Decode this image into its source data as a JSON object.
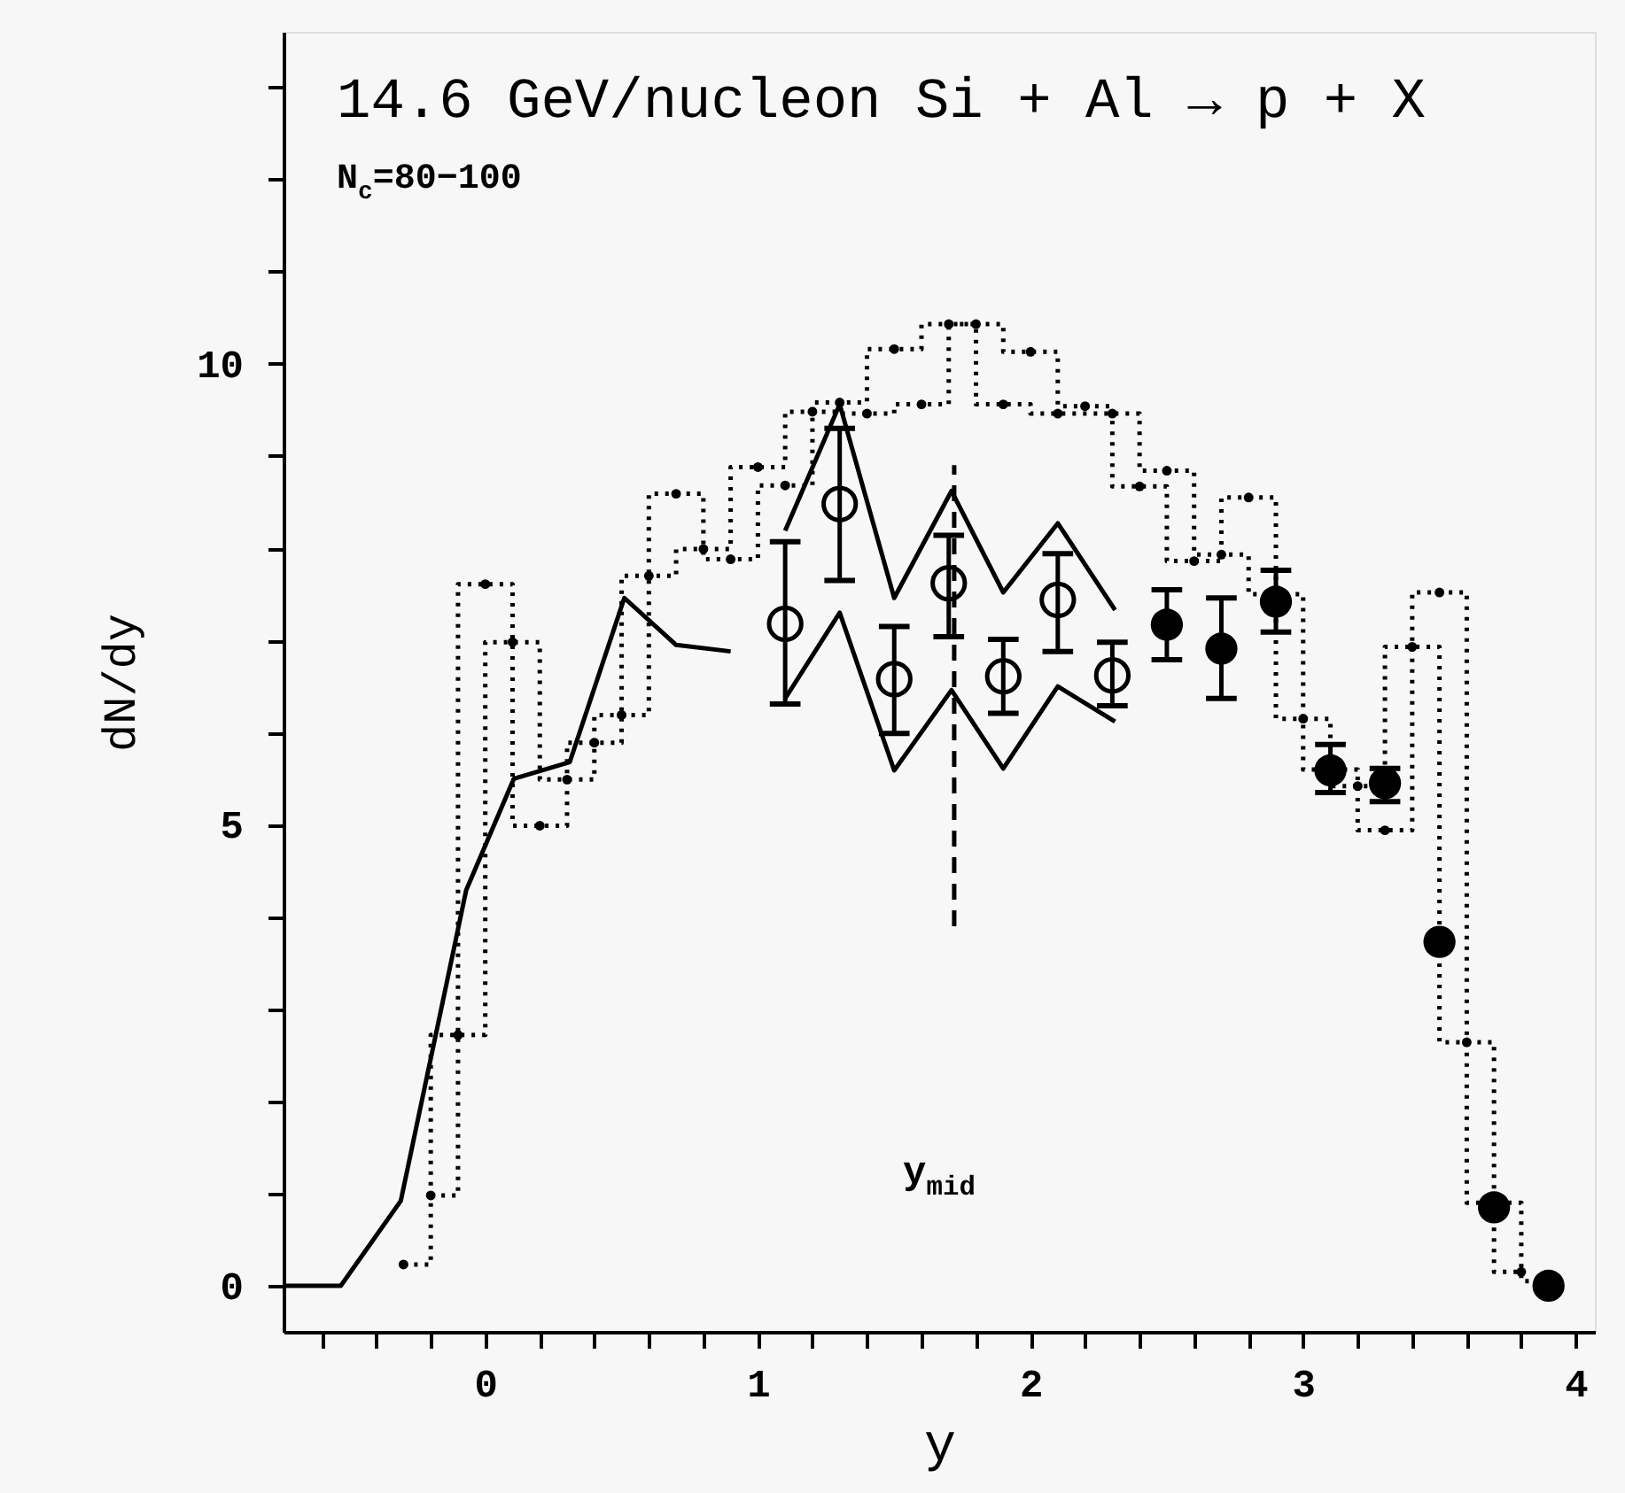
{
  "chart_data": {
    "type": "scatter",
    "title": "14.6 GeV/nucleon Si + Al → p + X",
    "xlabel": "y",
    "ylabel": "dN/dy",
    "xlim": [
      -0.74,
      4.07
    ],
    "ylim": [
      -0.5,
      13.6
    ],
    "xticks": [
      0,
      1,
      2,
      3,
      4,
      {
        "value": -0.6,
        "label": null
      },
      {
        "value": -0.4,
        "label": null
      },
      {
        "value": -0.2,
        "label": null
      },
      {
        "value": 0.2,
        "label": null
      },
      {
        "value": 0.4,
        "label": null
      },
      {
        "value": 0.6,
        "label": null
      },
      {
        "value": 0.8,
        "label": null
      },
      {
        "value": 1.2,
        "label": null
      },
      {
        "value": 1.4,
        "label": null
      },
      {
        "value": 1.6,
        "label": null
      },
      {
        "value": 1.8,
        "label": null
      },
      {
        "value": 2.2,
        "label": null
      },
      {
        "value": 2.4,
        "label": null
      },
      {
        "value": 2.6,
        "label": null
      },
      {
        "value": 2.8,
        "label": null
      },
      {
        "value": 3.2,
        "label": null
      },
      {
        "value": 3.4,
        "label": null
      },
      {
        "value": 3.6,
        "label": null
      },
      {
        "value": 3.8,
        "label": null
      }
    ],
    "yticks": [
      0,
      5,
      10,
      {
        "value": 1,
        "label": null
      },
      {
        "value": 2,
        "label": null
      },
      {
        "value": 3,
        "label": null
      },
      {
        "value": 4,
        "label": null
      },
      {
        "value": 6,
        "label": null
      },
      {
        "value": 7,
        "label": null
      },
      {
        "value": 8,
        "label": null
      },
      {
        "value": 9,
        "label": null
      },
      {
        "value": 11,
        "label": null
      },
      {
        "value": 12,
        "label": null
      },
      {
        "value": 13,
        "label": null
      }
    ],
    "grid": false,
    "annotations": [
      "N$_{c}$=80−100",
      "y$_{mid}$"
    ],
    "series": [
      {
        "type": "line",
        "color": "#000000",
        "line_style": "solid",
        "x": [
          -0.74,
          -0.53,
          -0.31,
          -0.07,
          0.105,
          0.31,
          0.51,
          0.7,
          0.9
        ],
        "values": [
          0,
          0,
          0.92,
          4.29,
          5.5,
          5.68,
          7.46,
          6.95,
          6.88
        ]
      },
      {
        "type": "line",
        "color": "#000000",
        "line_style": "solid",
        "x": [
          1.1,
          1.3,
          1.5,
          1.71,
          1.9,
          2.1,
          2.31
        ],
        "values": [
          8.19,
          9.56,
          7.46,
          8.62,
          7.52,
          8.27,
          7.33
        ]
      },
      {
        "type": "line",
        "color": "#000000",
        "line_style": "solid",
        "x": [
          1.1,
          1.3,
          1.5,
          1.71,
          1.9,
          2.1,
          2.31
        ],
        "values": [
          6.37,
          7.3,
          5.59,
          6.46,
          5.61,
          6.5,
          6.12
        ]
      },
      {
        "type": "line",
        "color": "#000000",
        "line_style": "dashed",
        "x": [
          1.72,
          1.72
        ],
        "values": [
          3.9,
          8.9
        ]
      },
      {
        "type": "step",
        "color": "#000000",
        "line_style": "dotted",
        "marker": "circle",
        "x": [
          -0.3,
          -0.1,
          0.1,
          0.3,
          0.5,
          0.7,
          0.9,
          1.1,
          1.3,
          1.5,
          1.7,
          1.9,
          2.1,
          2.3,
          2.5,
          2.7,
          2.9,
          3.1,
          3.3,
          3.5,
          3.7,
          3.9
        ],
        "values": [
          0.23,
          2.72,
          6.98,
          5.49,
          6.19,
          8.59,
          7.88,
          8.68,
          9.58,
          10.16,
          10.43,
          9.56,
          9.46,
          9.46,
          8.84,
          7.93,
          7.5,
          5.6,
          4.94,
          7.52,
          0.9,
          0.05
        ]
      },
      {
        "type": "step",
        "color": "#000000",
        "line_style": "dotted",
        "marker": "circle",
        "x": [
          -0.2,
          0.0,
          0.2,
          0.4,
          0.6,
          0.8,
          1.0,
          1.2,
          1.4,
          1.6,
          1.8,
          2.0,
          2.2,
          2.4,
          2.6,
          2.8,
          3.0,
          3.2,
          3.4,
          3.6,
          3.8
        ],
        "values": [
          0.98,
          7.61,
          4.99,
          5.89,
          7.7,
          7.99,
          8.88,
          9.48,
          9.46,
          9.56,
          10.43,
          10.13,
          9.54,
          8.67,
          7.86,
          8.55,
          6.15,
          5.42,
          6.93,
          2.64,
          0.15
        ]
      },
      {
        "color": "#000000",
        "marker": "circle",
        "x": [
          1.1,
          1.3,
          1.5,
          1.7,
          1.9,
          2.1,
          2.3
        ],
        "values": [
          7.18,
          8.48,
          6.58,
          7.62,
          6.61,
          7.44,
          6.62
        ],
        "errors": [
          [
            6.31,
            8.07
          ],
          [
            7.65,
            9.3
          ],
          [
            5.99,
            7.15
          ],
          [
            7.04,
            8.14
          ],
          [
            6.21,
            7.01
          ],
          [
            6.88,
            7.94
          ],
          [
            6.29,
            6.98
          ]
        ]
      },
      {
        "color": "#000000",
        "marker": "circle",
        "x": [
          2.5,
          2.7,
          2.9,
          3.1,
          3.3,
          3.5,
          3.7,
          3.9
        ],
        "values": [
          7.17,
          6.91,
          7.42,
          5.59,
          5.45,
          3.73,
          0.85,
          0.0
        ],
        "errors": [
          [
            6.79,
            7.55
          ],
          [
            6.37,
            7.46
          ],
          [
            7.09,
            7.76
          ],
          [
            5.35,
            5.87
          ],
          [
            5.25,
            5.61
          ],
          null,
          null,
          null
        ]
      }
    ]
  }
}
